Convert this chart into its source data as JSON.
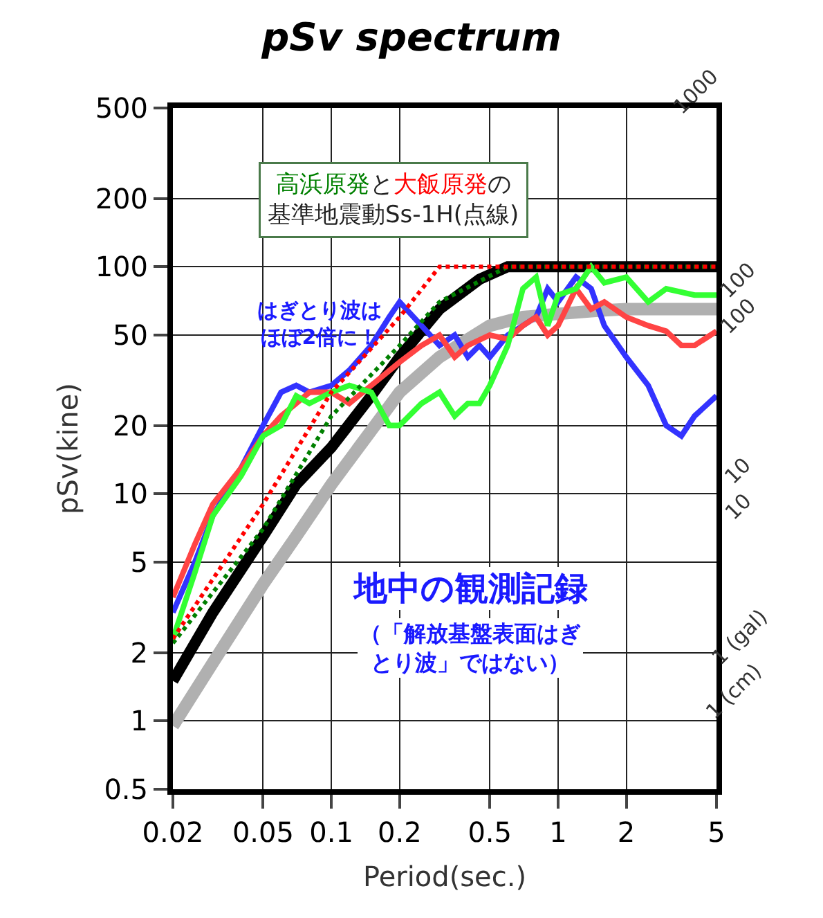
{
  "chart_data": {
    "type": "line",
    "title": "pSv spectrum",
    "xlabel": "Period(sec.)",
    "ylabel": "pSv(kine)",
    "log": "xy",
    "grid": true,
    "legend": false,
    "xlim": [
      0.02,
      5
    ],
    "xticks": [
      0.02,
      0.05,
      0.1,
      0.2,
      0.5,
      1,
      2,
      5
    ],
    "ylim": [
      0.5,
      500
    ],
    "yticks": [
      0.5,
      1,
      2,
      5,
      10,
      20,
      50,
      100,
      200,
      500
    ],
    "annotations": [
      "と",
      "の",
      "基準地震動Ss-1H(点線)",
      "はぎとり波はほぼ2倍に！",
      "地中の観測記録",
      "（「解放基盤表面はぎとり波」ではない）",
      "1000",
      "100",
      "100",
      "10",
      "10",
      "1 (gal)",
      "1 (cm)"
    ],
    "series": [
      {
        "color": "#b0b0b0",
        "x": [
          0.02,
          0.03,
          0.05,
          0.07,
          0.1,
          0.15,
          0.2,
          0.3,
          0.5,
          0.7,
          1,
          1.5,
          2,
          3,
          5
        ],
        "values": [
          0.95,
          1.8,
          4,
          6.5,
          11,
          19,
          28,
          40,
          55,
          60,
          62,
          64,
          65,
          65,
          65
        ]
      },
      {
        "color": "#000000",
        "x": [
          0.02,
          0.03,
          0.05,
          0.07,
          0.1,
          0.15,
          0.2,
          0.3,
          0.45,
          0.6,
          1,
          2,
          5
        ],
        "values": [
          1.5,
          3,
          6.5,
          11,
          16,
          27,
          40,
          65,
          88,
          100,
          100,
          100,
          100
        ]
      },
      {
        "color": "#3333ff",
        "x": [
          0.02,
          0.025,
          0.03,
          0.04,
          0.05,
          0.06,
          0.07,
          0.08,
          0.1,
          0.12,
          0.15,
          0.18,
          0.2,
          0.25,
          0.3,
          0.35,
          0.4,
          0.45,
          0.5,
          0.6,
          0.7,
          0.8,
          0.9,
          1,
          1.2,
          1.4,
          1.6,
          2,
          2.5,
          3,
          3.5,
          4,
          5
        ],
        "values": [
          3,
          5,
          8,
          13,
          20,
          28,
          30,
          28,
          30,
          35,
          45,
          60,
          70,
          55,
          45,
          50,
          40,
          45,
          40,
          50,
          55,
          60,
          80,
          70,
          90,
          80,
          55,
          40,
          30,
          20,
          18,
          22,
          27
        ]
      },
      {
        "color": "#ff4444",
        "x": [
          0.02,
          0.025,
          0.03,
          0.04,
          0.05,
          0.06,
          0.07,
          0.08,
          0.1,
          0.12,
          0.15,
          0.2,
          0.25,
          0.3,
          0.35,
          0.4,
          0.5,
          0.6,
          0.7,
          0.8,
          0.9,
          1,
          1.2,
          1.4,
          1.6,
          2,
          2.5,
          3,
          3.5,
          4,
          5
        ],
        "values": [
          3.5,
          6,
          9,
          13,
          18,
          22,
          25,
          28,
          28,
          25,
          30,
          38,
          45,
          50,
          40,
          45,
          50,
          48,
          55,
          60,
          50,
          55,
          80,
          65,
          70,
          60,
          55,
          52,
          45,
          45,
          52
        ]
      },
      {
        "color": "#33ff33",
        "x": [
          0.02,
          0.025,
          0.03,
          0.04,
          0.05,
          0.06,
          0.07,
          0.08,
          0.1,
          0.12,
          0.15,
          0.18,
          0.2,
          0.25,
          0.3,
          0.35,
          0.4,
          0.45,
          0.5,
          0.6,
          0.7,
          0.8,
          0.9,
          1,
          1.2,
          1.4,
          1.6,
          2,
          2.5,
          3,
          4,
          5
        ],
        "values": [
          2.3,
          4.5,
          8,
          12,
          18,
          20,
          27,
          25,
          28,
          30,
          28,
          20,
          20,
          25,
          28,
          22,
          25,
          25,
          30,
          45,
          80,
          90,
          55,
          75,
          80,
          100,
          85,
          90,
          70,
          80,
          75,
          75
        ]
      },
      {
        "name": "高浜原発",
        "color": "#008000",
        "line_style": "dotted",
        "x": [
          0.02,
          0.05,
          0.1,
          0.2,
          0.3,
          0.6,
          5
        ],
        "values": [
          2.2,
          7,
          22,
          45,
          70,
          100,
          100
        ]
      },
      {
        "name": "大飯原発",
        "color": "#ff0000",
        "line_style": "dotted",
        "x": [
          0.02,
          0.05,
          0.1,
          0.2,
          0.3,
          5
        ],
        "values": [
          2.3,
          9,
          28,
          60,
          100,
          100
        ]
      }
    ]
  }
}
